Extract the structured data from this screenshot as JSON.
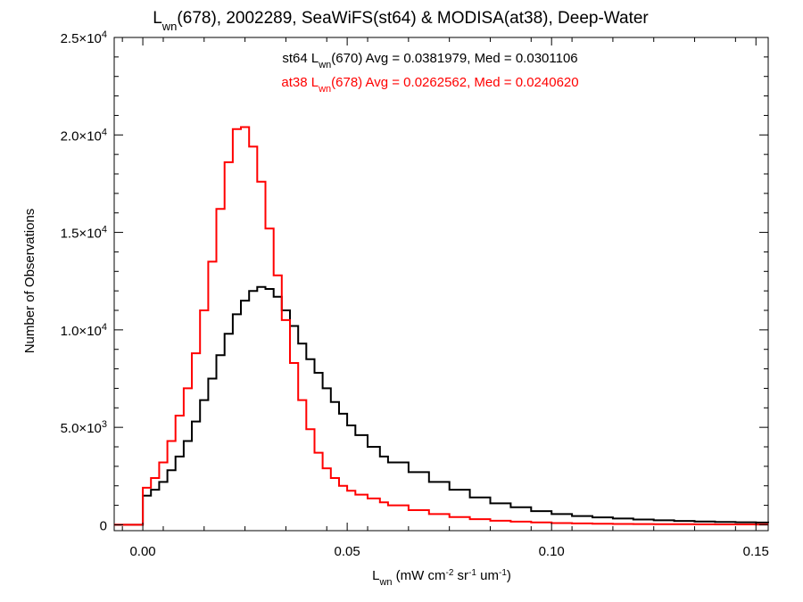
{
  "chart_data": {
    "type": "line",
    "title": {
      "main": "L",
      "sub": "wn",
      "rest": "(678), 2002289, SeaWiFS(st64) & MODISA(at38), Deep-Water"
    },
    "xlabel": {
      "main": "L",
      "sub": "wn",
      "p1": " (mW cm",
      "sup1": "-2",
      "p2": " sr",
      "sup2": "-1",
      "p3": " um",
      "sup3": "-1",
      "p4": ")"
    },
    "ylabel": "Number of Observations",
    "xlim": [
      -0.007,
      0.153
    ],
    "ylim": [
      -300,
      25000
    ],
    "xticks": [
      {
        "v": 0.0,
        "label": "0.00"
      },
      {
        "v": 0.05,
        "label": "0.05"
      },
      {
        "v": 0.1,
        "label": "0.10"
      },
      {
        "v": 0.15,
        "label": "0.15"
      }
    ],
    "yticks": [
      {
        "v": 0,
        "label": "0",
        "exp": ""
      },
      {
        "v": 5000,
        "label": "5.0×10",
        "exp": "3"
      },
      {
        "v": 10000,
        "label": "1.0×10",
        "exp": "4"
      },
      {
        "v": 15000,
        "label": "1.5×10",
        "exp": "4"
      },
      {
        "v": 20000,
        "label": "2.0×10",
        "exp": "4"
      },
      {
        "v": 25000,
        "label": "2.5×10",
        "exp": "4"
      }
    ],
    "annotations": [
      {
        "pre": "st64 L",
        "sub": "wn",
        "post": "(670) Avg = 0.0381979, Med = 0.0301106",
        "color": "#000000"
      },
      {
        "pre": "at38 L",
        "sub": "wn",
        "post": "(678) Avg = 0.0262562, Med = 0.0240620",
        "color": "#ff0000"
      }
    ],
    "series": [
      {
        "color": "#000000",
        "points": [
          [
            -0.007,
            0
          ],
          [
            -0.0005,
            0
          ],
          [
            0.0,
            1500
          ],
          [
            0.002,
            1800
          ],
          [
            0.004,
            2200
          ],
          [
            0.006,
            2800
          ],
          [
            0.008,
            3500
          ],
          [
            0.01,
            4300
          ],
          [
            0.012,
            5300
          ],
          [
            0.014,
            6400
          ],
          [
            0.016,
            7500
          ],
          [
            0.018,
            8700
          ],
          [
            0.02,
            9800
          ],
          [
            0.022,
            10800
          ],
          [
            0.024,
            11500
          ],
          [
            0.026,
            12000
          ],
          [
            0.028,
            12200
          ],
          [
            0.03,
            12100
          ],
          [
            0.032,
            11700
          ],
          [
            0.034,
            11000
          ],
          [
            0.036,
            10200
          ],
          [
            0.038,
            9300
          ],
          [
            0.04,
            8500
          ],
          [
            0.042,
            7800
          ],
          [
            0.044,
            7000
          ],
          [
            0.046,
            6300
          ],
          [
            0.048,
            5700
          ],
          [
            0.05,
            5100
          ],
          [
            0.052,
            4600
          ],
          [
            0.055,
            4000
          ],
          [
            0.058,
            3500
          ],
          [
            0.06,
            3200
          ],
          [
            0.065,
            2700
          ],
          [
            0.07,
            2200
          ],
          [
            0.075,
            1800
          ],
          [
            0.08,
            1400
          ],
          [
            0.085,
            1100
          ],
          [
            0.09,
            900
          ],
          [
            0.095,
            700
          ],
          [
            0.1,
            550
          ],
          [
            0.105,
            450
          ],
          [
            0.11,
            380
          ],
          [
            0.115,
            320
          ],
          [
            0.12,
            270
          ],
          [
            0.125,
            230
          ],
          [
            0.13,
            200
          ],
          [
            0.135,
            170
          ],
          [
            0.14,
            150
          ],
          [
            0.145,
            130
          ],
          [
            0.15,
            115
          ],
          [
            0.153,
            100
          ]
        ]
      },
      {
        "color": "#ff0000",
        "points": [
          [
            -0.007,
            0
          ],
          [
            -0.0005,
            0
          ],
          [
            0.0,
            1900
          ],
          [
            0.002,
            2400
          ],
          [
            0.004,
            3200
          ],
          [
            0.006,
            4300
          ],
          [
            0.008,
            5600
          ],
          [
            0.01,
            7000
          ],
          [
            0.012,
            8800
          ],
          [
            0.014,
            11000
          ],
          [
            0.016,
            13500
          ],
          [
            0.018,
            16200
          ],
          [
            0.02,
            18600
          ],
          [
            0.022,
            20300
          ],
          [
            0.024,
            20400
          ],
          [
            0.026,
            19400
          ],
          [
            0.028,
            17600
          ],
          [
            0.03,
            15200
          ],
          [
            0.032,
            12800
          ],
          [
            0.034,
            10500
          ],
          [
            0.036,
            8300
          ],
          [
            0.038,
            6400
          ],
          [
            0.04,
            4900
          ],
          [
            0.042,
            3700
          ],
          [
            0.044,
            2900
          ],
          [
            0.046,
            2400
          ],
          [
            0.048,
            2000
          ],
          [
            0.05,
            1750
          ],
          [
            0.052,
            1550
          ],
          [
            0.055,
            1350
          ],
          [
            0.058,
            1150
          ],
          [
            0.06,
            1000
          ],
          [
            0.065,
            750
          ],
          [
            0.07,
            550
          ],
          [
            0.075,
            400
          ],
          [
            0.08,
            290
          ],
          [
            0.085,
            210
          ],
          [
            0.09,
            160
          ],
          [
            0.095,
            120
          ],
          [
            0.1,
            90
          ],
          [
            0.105,
            70
          ],
          [
            0.11,
            55
          ],
          [
            0.115,
            45
          ],
          [
            0.12,
            38
          ],
          [
            0.125,
            32
          ],
          [
            0.13,
            28
          ],
          [
            0.135,
            24
          ],
          [
            0.14,
            21
          ],
          [
            0.145,
            18
          ],
          [
            0.15,
            16
          ],
          [
            0.153,
            15
          ]
        ]
      }
    ],
    "grid": false,
    "legend": "none"
  }
}
